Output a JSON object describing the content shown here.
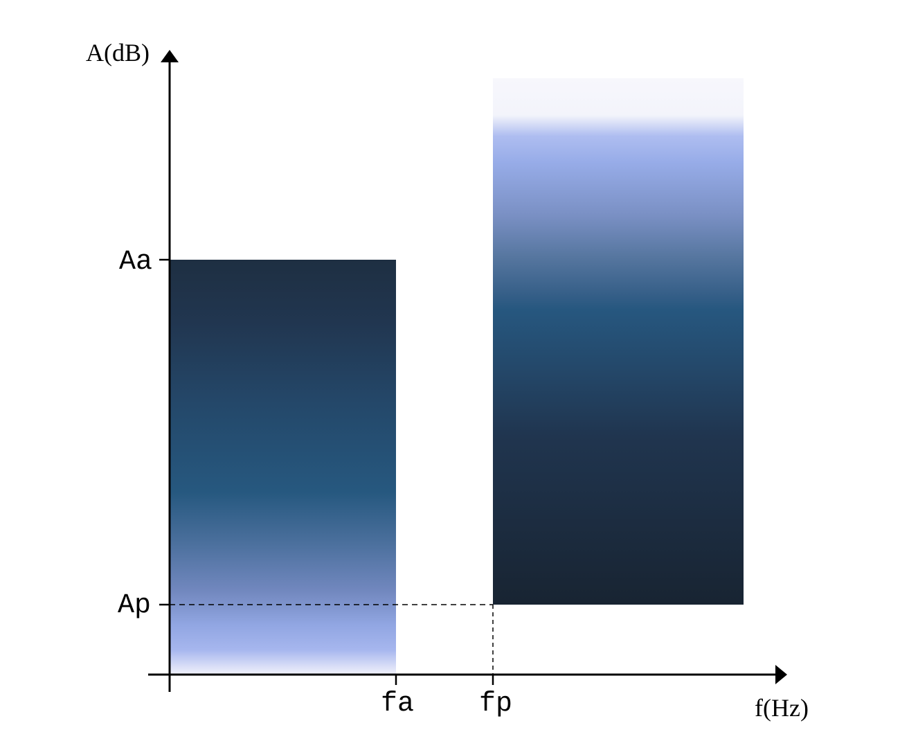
{
  "axes": {
    "y_label": "A(dB)",
    "x_label": "f(Hz)"
  },
  "ticks": {
    "y": [
      {
        "id": "aa",
        "label": "Aa"
      },
      {
        "id": "ap",
        "label": "Ap"
      }
    ],
    "x": [
      {
        "id": "fa",
        "label": "fa"
      },
      {
        "id": "fp",
        "label": "fp"
      }
    ]
  },
  "colors": {
    "axis": "#000000",
    "band_dark": "#1a2738",
    "band_mid": "#26587f",
    "band_light": "#9ab0ea",
    "band_pale": "#f5f5fb"
  }
}
